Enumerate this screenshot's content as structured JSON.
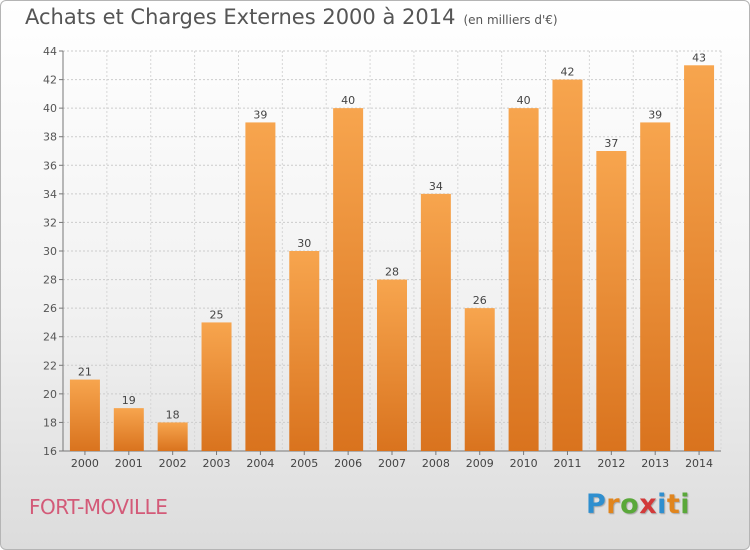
{
  "header": {
    "title": "Achats et Charges Externes 2000 à 2014",
    "subtitle": "(en milliers d'€)"
  },
  "commune": "FORT-MOVILLE",
  "logo": {
    "text": "Proxiti",
    "letters": [
      {
        "char": "P",
        "color": "#2f8fcf"
      },
      {
        "char": "r",
        "color": "#e0851e"
      },
      {
        "char": "o",
        "color": "#5aa83a"
      },
      {
        "char": "x",
        "color": "#d23a3a"
      },
      {
        "char": "i",
        "color": "#2f8fcf"
      },
      {
        "char": "t",
        "color": "#e0851e"
      },
      {
        "char": "i",
        "color": "#5aa83a"
      }
    ]
  },
  "chart_data": {
    "type": "bar",
    "categories": [
      "2000",
      "2001",
      "2002",
      "2003",
      "2004",
      "2005",
      "2006",
      "2007",
      "2008",
      "2009",
      "2010",
      "2011",
      "2012",
      "2013",
      "2014"
    ],
    "values": [
      21,
      19,
      18,
      25,
      39,
      30,
      40,
      28,
      34,
      26,
      40,
      42,
      37,
      39,
      43
    ],
    "ylim": [
      16,
      44
    ],
    "yticks": [
      16,
      18,
      20,
      22,
      24,
      26,
      28,
      30,
      32,
      34,
      36,
      38,
      40,
      42,
      44
    ],
    "grid": true,
    "bar_color_top": "#f7a54e",
    "bar_color_bottom": "#d9731e"
  }
}
